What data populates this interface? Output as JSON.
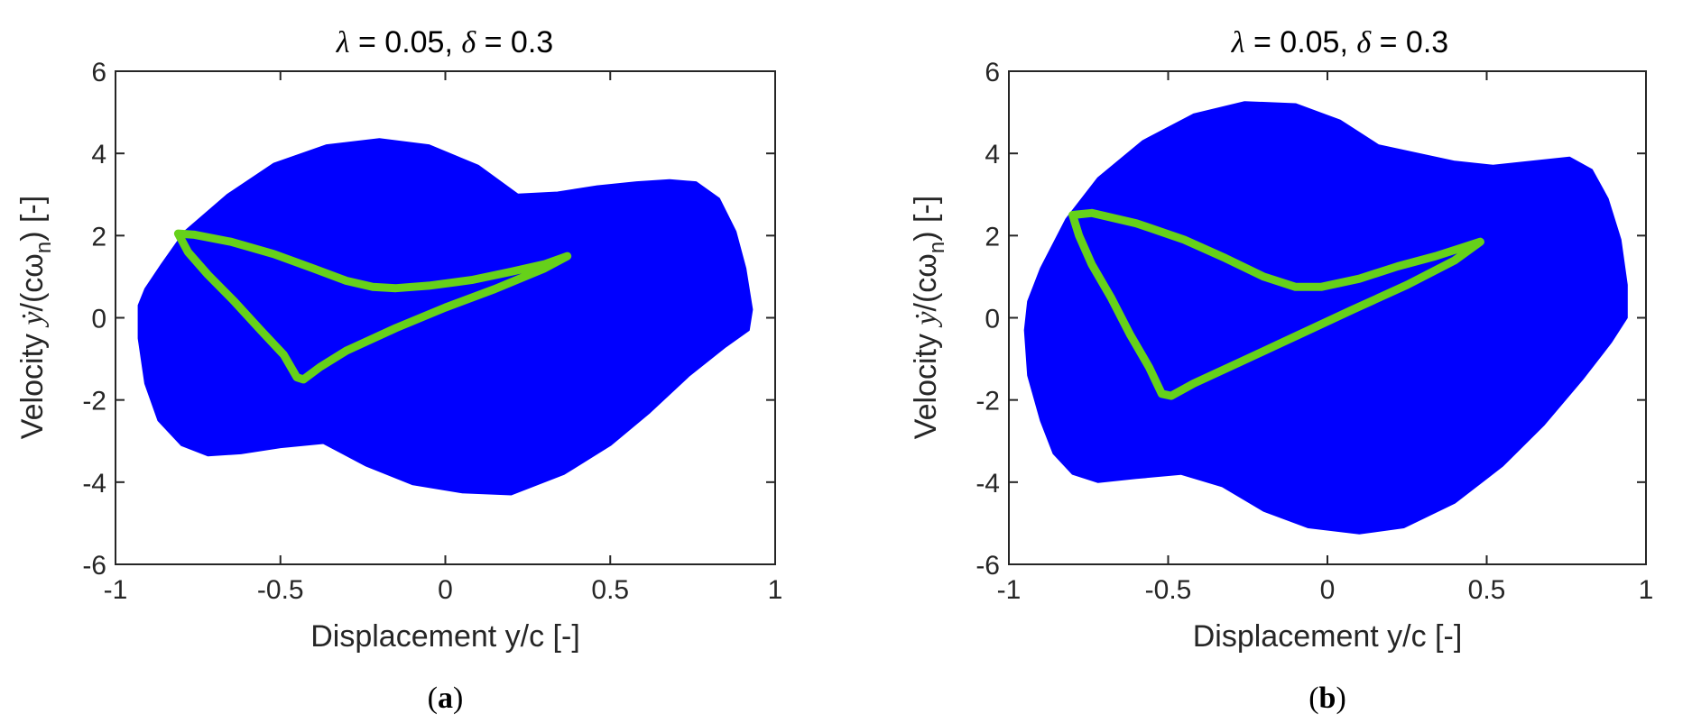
{
  "colors": {
    "region": "#0000FF",
    "orbit": "#66D11A",
    "axis": "#262626"
  },
  "chart_data": [
    {
      "type": "scatter",
      "panel": "a",
      "title": {
        "lambda_sym": "λ",
        "lambda_rest": " = 0.05, ",
        "delta_sym": "δ",
        "delta_rest": "  = 0.3"
      },
      "xlabel": "Displacement  y/c [-]",
      "ylabel": {
        "prefix": "Velocity  ",
        "ydot": "ẏ",
        "mid": "/(cω",
        "sub": "n",
        "suffix": ") [-]"
      },
      "xlim": [
        -1,
        1
      ],
      "ylim": [
        -6,
        6
      ],
      "xticks": [
        -1,
        -0.5,
        0,
        0.5,
        1
      ],
      "xtick_labels": [
        "-1",
        "-0.5",
        "0",
        "0.5",
        "1"
      ],
      "yticks": [
        -6,
        -4,
        -2,
        0,
        2,
        4,
        6
      ],
      "ytick_labels": [
        "-6",
        "-4",
        "-2",
        "0",
        "2",
        "4",
        "6"
      ],
      "series": [
        {
          "name": "basin",
          "style": "filled-region",
          "points": [
            [
              -0.79,
              2.1
            ],
            [
              -0.66,
              3.0
            ],
            [
              -0.52,
              3.75
            ],
            [
              -0.36,
              4.2
            ],
            [
              -0.2,
              4.35
            ],
            [
              -0.05,
              4.2
            ],
            [
              0.1,
              3.7
            ],
            [
              0.22,
              3.0
            ],
            [
              0.34,
              3.05
            ],
            [
              0.46,
              3.2
            ],
            [
              0.58,
              3.3
            ],
            [
              0.68,
              3.35
            ],
            [
              0.76,
              3.3
            ],
            [
              0.83,
              2.9
            ],
            [
              0.88,
              2.1
            ],
            [
              0.91,
              1.2
            ],
            [
              0.93,
              0.2
            ],
            [
              0.92,
              -0.3
            ],
            [
              0.85,
              -0.7
            ],
            [
              0.74,
              -1.4
            ],
            [
              0.62,
              -2.3
            ],
            [
              0.5,
              -3.1
            ],
            [
              0.36,
              -3.8
            ],
            [
              0.2,
              -4.3
            ],
            [
              0.05,
              -4.25
            ],
            [
              -0.1,
              -4.05
            ],
            [
              -0.24,
              -3.6
            ],
            [
              -0.37,
              -3.05
            ],
            [
              -0.5,
              -3.15
            ],
            [
              -0.62,
              -3.3
            ],
            [
              -0.72,
              -3.35
            ],
            [
              -0.8,
              -3.1
            ],
            [
              -0.87,
              -2.5
            ],
            [
              -0.91,
              -1.6
            ],
            [
              -0.93,
              -0.5
            ],
            [
              -0.93,
              0.3
            ],
            [
              -0.91,
              0.7
            ],
            [
              -0.86,
              1.3
            ]
          ]
        },
        {
          "name": "orbit",
          "style": "thick-line",
          "points": [
            [
              -0.81,
              2.05
            ],
            [
              -0.76,
              2.02
            ],
            [
              -0.65,
              1.85
            ],
            [
              -0.52,
              1.55
            ],
            [
              -0.4,
              1.2
            ],
            [
              -0.3,
              0.9
            ],
            [
              -0.22,
              0.75
            ],
            [
              -0.15,
              0.72
            ],
            [
              -0.05,
              0.78
            ],
            [
              0.08,
              0.92
            ],
            [
              0.2,
              1.12
            ],
            [
              0.3,
              1.3
            ],
            [
              0.37,
              1.5
            ],
            [
              0.3,
              1.2
            ],
            [
              0.15,
              0.7
            ],
            [
              0.0,
              0.25
            ],
            [
              -0.15,
              -0.25
            ],
            [
              -0.3,
              -0.8
            ],
            [
              -0.38,
              -1.2
            ],
            [
              -0.43,
              -1.5
            ],
            [
              -0.45,
              -1.45
            ],
            [
              -0.49,
              -0.9
            ],
            [
              -0.56,
              -0.3
            ],
            [
              -0.64,
              0.4
            ],
            [
              -0.72,
              1.05
            ],
            [
              -0.78,
              1.6
            ],
            [
              -0.81,
              2.05
            ]
          ]
        }
      ]
    },
    {
      "type": "scatter",
      "panel": "b",
      "title": {
        "lambda_sym": "λ",
        "lambda_rest": " = 0.05, ",
        "delta_sym": "δ",
        "delta_rest": "  = 0.3"
      },
      "xlabel": "Displacement  y/c [-]",
      "ylabel": {
        "prefix": "Velocity  ",
        "ydot": "ẏ",
        "mid": "/(cω",
        "sub": "n",
        "suffix": ") [-]"
      },
      "xlim": [
        -1,
        1
      ],
      "ylim": [
        -6,
        6
      ],
      "xticks": [
        -1,
        -0.5,
        0,
        0.5,
        1
      ],
      "xtick_labels": [
        "-1",
        "-0.5",
        "0",
        "0.5",
        "1"
      ],
      "yticks": [
        -6,
        -4,
        -2,
        0,
        2,
        4,
        6
      ],
      "ytick_labels": [
        "-6",
        "-4",
        "-2",
        "0",
        "2",
        "4",
        "6"
      ],
      "series": [
        {
          "name": "basin",
          "style": "filled-region",
          "points": [
            [
              -0.82,
              2.4
            ],
            [
              -0.72,
              3.4
            ],
            [
              -0.58,
              4.3
            ],
            [
              -0.42,
              4.95
            ],
            [
              -0.26,
              5.25
            ],
            [
              -0.1,
              5.2
            ],
            [
              0.04,
              4.8
            ],
            [
              0.16,
              4.2
            ],
            [
              0.28,
              4.0
            ],
            [
              0.4,
              3.8
            ],
            [
              0.52,
              3.7
            ],
            [
              0.64,
              3.8
            ],
            [
              0.76,
              3.9
            ],
            [
              0.83,
              3.6
            ],
            [
              0.88,
              2.9
            ],
            [
              0.92,
              1.9
            ],
            [
              0.94,
              0.8
            ],
            [
              0.94,
              0.0
            ],
            [
              0.89,
              -0.6
            ],
            [
              0.8,
              -1.5
            ],
            [
              0.68,
              -2.6
            ],
            [
              0.55,
              -3.6
            ],
            [
              0.4,
              -4.5
            ],
            [
              0.24,
              -5.1
            ],
            [
              0.1,
              -5.25
            ],
            [
              -0.06,
              -5.1
            ],
            [
              -0.2,
              -4.7
            ],
            [
              -0.33,
              -4.1
            ],
            [
              -0.46,
              -3.8
            ],
            [
              -0.6,
              -3.9
            ],
            [
              -0.72,
              -4.0
            ],
            [
              -0.8,
              -3.8
            ],
            [
              -0.86,
              -3.3
            ],
            [
              -0.9,
              -2.5
            ],
            [
              -0.94,
              -1.4
            ],
            [
              -0.95,
              -0.3
            ],
            [
              -0.94,
              0.4
            ],
            [
              -0.9,
              1.2
            ]
          ]
        },
        {
          "name": "orbit",
          "style": "thick-line",
          "points": [
            [
              -0.8,
              2.5
            ],
            [
              -0.74,
              2.55
            ],
            [
              -0.6,
              2.3
            ],
            [
              -0.45,
              1.9
            ],
            [
              -0.32,
              1.45
            ],
            [
              -0.2,
              1.0
            ],
            [
              -0.1,
              0.75
            ],
            [
              -0.02,
              0.75
            ],
            [
              0.1,
              0.95
            ],
            [
              0.22,
              1.25
            ],
            [
              0.34,
              1.5
            ],
            [
              0.42,
              1.7
            ],
            [
              0.48,
              1.85
            ],
            [
              0.4,
              1.4
            ],
            [
              0.25,
              0.8
            ],
            [
              0.08,
              0.2
            ],
            [
              -0.1,
              -0.45
            ],
            [
              -0.28,
              -1.1
            ],
            [
              -0.42,
              -1.6
            ],
            [
              -0.49,
              -1.9
            ],
            [
              -0.52,
              -1.85
            ],
            [
              -0.56,
              -1.2
            ],
            [
              -0.62,
              -0.4
            ],
            [
              -0.68,
              0.5
            ],
            [
              -0.74,
              1.3
            ],
            [
              -0.78,
              2.0
            ],
            [
              -0.8,
              2.5
            ]
          ]
        }
      ]
    }
  ]
}
